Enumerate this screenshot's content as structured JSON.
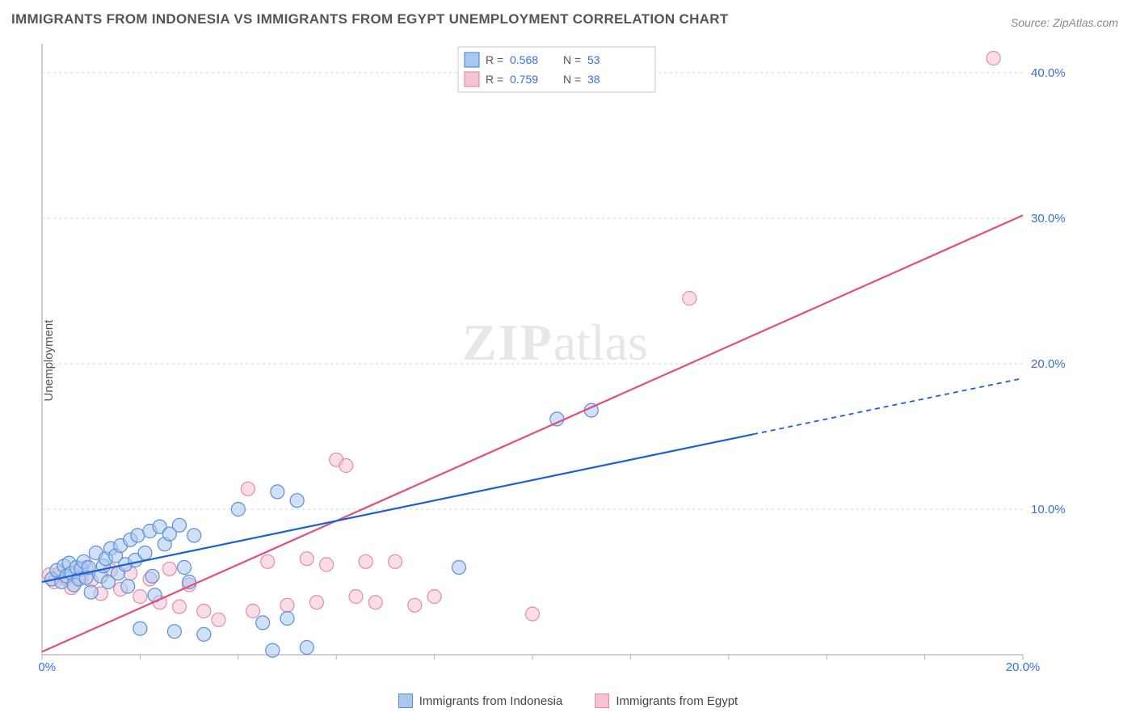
{
  "title": "IMMIGRANTS FROM INDONESIA VS IMMIGRANTS FROM EGYPT UNEMPLOYMENT CORRELATION CHART",
  "source": "Source: ZipAtlas.com",
  "ylabel": "Unemployment",
  "watermark_a": "ZIP",
  "watermark_b": "atlas",
  "chart": {
    "type": "scatter",
    "background_color": "#ffffff",
    "grid_color": "#d0d0d0",
    "grid_dash": "3 4",
    "border_color": "#c0c0c0",
    "axis_label_color": "#3a6fd8",
    "axis_label_fontsize": 15,
    "xlim": [
      0,
      20
    ],
    "ylim": [
      0,
      42
    ],
    "xticks": [
      0,
      2,
      4,
      6,
      8,
      10,
      12,
      14,
      16,
      18,
      20
    ],
    "xticks_labeled": {
      "0": "0.0%",
      "20": "20.0%"
    },
    "yticks": [
      10,
      20,
      30,
      40
    ],
    "yticks_labeled": {
      "10": "10.0%",
      "20": "20.0%",
      "30": "30.0%",
      "40": "40.0%"
    },
    "marker_radius": 8.5,
    "series": {
      "blue": {
        "name": "Immigrants from Indonesia",
        "fill": "#a9c8f0",
        "stroke": "#5a8fd6",
        "fill_opacity": 0.55,
        "trend_color": "#1b5fd9",
        "trend_width": 2.2,
        "trend": {
          "x1": 0,
          "y1": 5.0,
          "x2": 20,
          "y2": 19.0,
          "solid_until_x": 14.5
        },
        "points": [
          [
            0.2,
            5.2
          ],
          [
            0.3,
            5.8
          ],
          [
            0.4,
            5.0
          ],
          [
            0.45,
            6.1
          ],
          [
            0.5,
            5.4
          ],
          [
            0.55,
            6.3
          ],
          [
            0.6,
            5.6
          ],
          [
            0.65,
            4.8
          ],
          [
            0.7,
            6.0
          ],
          [
            0.75,
            5.2
          ],
          [
            0.8,
            5.9
          ],
          [
            0.85,
            6.4
          ],
          [
            0.9,
            5.3
          ],
          [
            0.95,
            6.0
          ],
          [
            1.0,
            4.3
          ],
          [
            1.1,
            7.0
          ],
          [
            1.2,
            5.4
          ],
          [
            1.25,
            6.1
          ],
          [
            1.3,
            6.6
          ],
          [
            1.35,
            5.0
          ],
          [
            1.4,
            7.3
          ],
          [
            1.5,
            6.8
          ],
          [
            1.55,
            5.6
          ],
          [
            1.6,
            7.5
          ],
          [
            1.7,
            6.2
          ],
          [
            1.75,
            4.7
          ],
          [
            1.8,
            7.9
          ],
          [
            1.9,
            6.5
          ],
          [
            1.95,
            8.2
          ],
          [
            2.0,
            1.8
          ],
          [
            2.1,
            7.0
          ],
          [
            2.2,
            8.5
          ],
          [
            2.25,
            5.4
          ],
          [
            2.3,
            4.1
          ],
          [
            2.4,
            8.8
          ],
          [
            2.5,
            7.6
          ],
          [
            2.6,
            8.3
          ],
          [
            2.7,
            1.6
          ],
          [
            2.8,
            8.9
          ],
          [
            2.9,
            6.0
          ],
          [
            3.0,
            5.0
          ],
          [
            3.1,
            8.2
          ],
          [
            3.3,
            1.4
          ],
          [
            4.0,
            10.0
          ],
          [
            4.5,
            2.2
          ],
          [
            4.7,
            0.3
          ],
          [
            4.8,
            11.2
          ],
          [
            5.2,
            10.6
          ],
          [
            5.0,
            2.5
          ],
          [
            5.4,
            0.5
          ],
          [
            8.5,
            6.0
          ],
          [
            10.5,
            16.2
          ],
          [
            11.2,
            16.8
          ]
        ]
      },
      "pink": {
        "name": "Immigrants from Egypt",
        "fill": "#f6c3d3",
        "stroke": "#e68aa8",
        "fill_opacity": 0.55,
        "trend_color": "#e34d7b",
        "trend_width": 2.2,
        "trend": {
          "x1": 0,
          "y1": 0.2,
          "x2": 20,
          "y2": 30.2
        },
        "points": [
          [
            0.15,
            5.5
          ],
          [
            0.25,
            5.0
          ],
          [
            0.35,
            5.6
          ],
          [
            0.5,
            5.2
          ],
          [
            0.6,
            4.6
          ],
          [
            0.8,
            5.3
          ],
          [
            0.9,
            6.0
          ],
          [
            1.0,
            5.1
          ],
          [
            1.2,
            4.2
          ],
          [
            1.4,
            5.8
          ],
          [
            1.6,
            4.5
          ],
          [
            1.8,
            5.6
          ],
          [
            2.0,
            4.0
          ],
          [
            2.2,
            5.2
          ],
          [
            2.4,
            3.6
          ],
          [
            2.6,
            5.9
          ],
          [
            2.8,
            3.3
          ],
          [
            3.0,
            4.8
          ],
          [
            3.3,
            3.0
          ],
          [
            3.6,
            2.4
          ],
          [
            4.2,
            11.4
          ],
          [
            4.3,
            3.0
          ],
          [
            4.6,
            6.4
          ],
          [
            5.0,
            3.4
          ],
          [
            5.4,
            6.6
          ],
          [
            5.6,
            3.6
          ],
          [
            5.8,
            6.2
          ],
          [
            6.0,
            13.4
          ],
          [
            6.2,
            13.0
          ],
          [
            6.4,
            4.0
          ],
          [
            6.6,
            6.4
          ],
          [
            6.8,
            3.6
          ],
          [
            7.2,
            6.4
          ],
          [
            7.6,
            3.4
          ],
          [
            8.0,
            4.0
          ],
          [
            10.0,
            2.8
          ],
          [
            13.2,
            24.5
          ],
          [
            19.4,
            41.0
          ]
        ]
      }
    },
    "legend_top": {
      "rows": [
        {
          "swatch": "blue",
          "r_label": "R =",
          "r_value": "0.568",
          "n_label": "N =",
          "n_value": "53"
        },
        {
          "swatch": "pink",
          "r_label": "R =",
          "r_value": "0.759",
          "n_label": "N =",
          "n_value": "38"
        }
      ]
    }
  },
  "bottom_legend": {
    "items": [
      {
        "swatch": "blue",
        "label": "Immigrants from Indonesia"
      },
      {
        "swatch": "pink",
        "label": "Immigrants from Egypt"
      }
    ]
  }
}
